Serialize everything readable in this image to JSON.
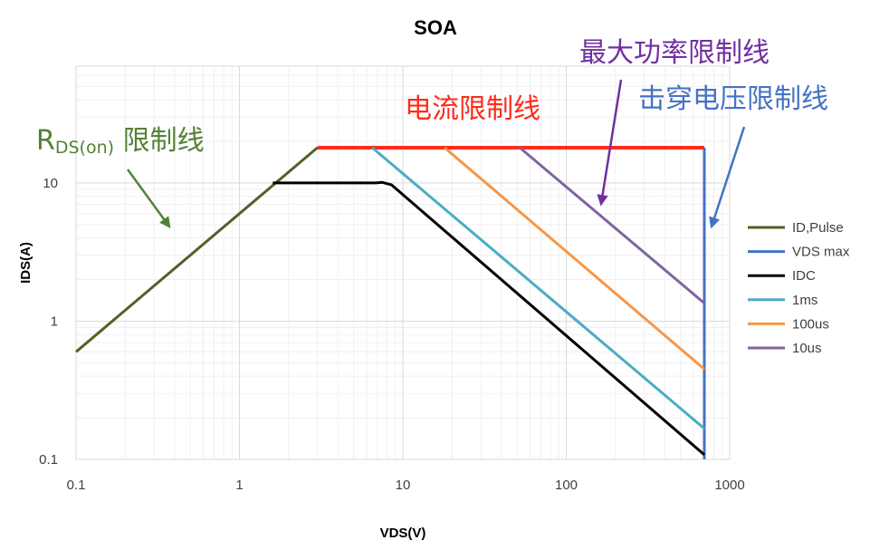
{
  "chart_data": {
    "type": "line",
    "title": "SOA",
    "xlabel": "VDS(V)",
    "ylabel": "IDS(A)",
    "x_scale": "log",
    "y_scale": "log",
    "xlim": [
      0.1,
      1000
    ],
    "ylim": [
      0.1,
      70
    ],
    "x_ticks": [
      0.1,
      1,
      10,
      100,
      1000
    ],
    "x_tick_labels": [
      "0.1",
      "1",
      "10",
      "100",
      "1000"
    ],
    "y_ticks": [
      0.1,
      1,
      10
    ],
    "y_tick_labels": [
      "0.1",
      "1",
      "10"
    ],
    "grid": true,
    "legend_position": "right",
    "series": [
      {
        "name": "ID,Pulse",
        "color": "#4f6228",
        "points": [
          [
            0.1,
            0.6
          ],
          [
            3,
            18
          ]
        ]
      },
      {
        "name": "VDS max",
        "color": "#4472c4",
        "points": [
          [
            700,
            18
          ],
          [
            700,
            0.1
          ]
        ]
      },
      {
        "name": "IDC",
        "color": "#000000",
        "points": [
          [
            1.6,
            10
          ],
          [
            6.8,
            10
          ],
          [
            7.5,
            10.1
          ],
          [
            8.5,
            9.7
          ],
          [
            700,
            0.108
          ]
        ]
      },
      {
        "name": "1ms",
        "color": "#4bacc6",
        "points": [
          [
            6.5,
            18
          ],
          [
            700,
            0.167
          ]
        ]
      },
      {
        "name": "100us",
        "color": "#f79646",
        "points": [
          [
            18,
            18
          ],
          [
            700,
            0.45
          ]
        ]
      },
      {
        "name": "10us",
        "color": "#8064a2",
        "points": [
          [
            52,
            18
          ],
          [
            700,
            1.35
          ]
        ]
      }
    ],
    "reference_lines": [
      {
        "color": "#ff2a1a",
        "points": [
          [
            3,
            18
          ],
          [
            700,
            18
          ]
        ]
      }
    ],
    "annotations": [
      {
        "id": "rds",
        "main": "R",
        "sub": "DS(on)",
        "text": " 限制线",
        "color": "#548235"
      },
      {
        "id": "current",
        "text": "电流限制线",
        "color": "#ff2a1a"
      },
      {
        "id": "power",
        "text": "最大功率限制线",
        "color": "#7030a0"
      },
      {
        "id": "breakdown",
        "text": "击穿电压限制线",
        "color": "#4472c4"
      }
    ]
  }
}
